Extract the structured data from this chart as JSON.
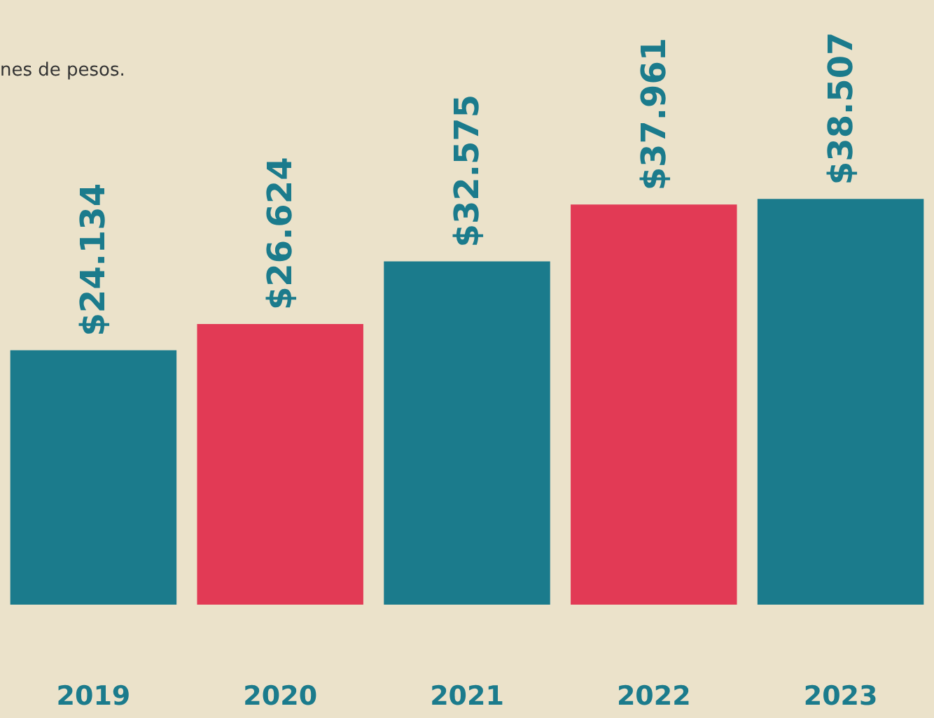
{
  "chart_data": {
    "type": "bar",
    "subtitle": "nes de pesos.",
    "categories": [
      "2019",
      "2020",
      "2021",
      "2022",
      "2023"
    ],
    "values": [
      24134,
      26624,
      32575,
      37961,
      38507
    ],
    "colors": [
      "#1b7b8c",
      "#e23a55",
      "#1b7b8c",
      "#e23a55",
      "#1b7b8c"
    ],
    "value_labels": [
      "$24.134",
      "$26.624",
      "$32.575",
      "$37.961",
      "$38.507"
    ]
  }
}
